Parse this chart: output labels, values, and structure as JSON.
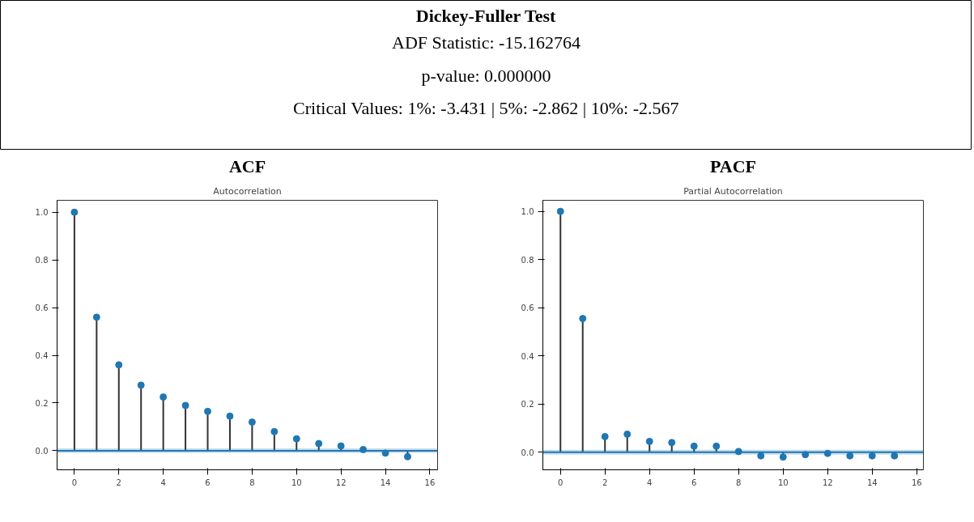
{
  "chart_data": [
    {
      "type": "other",
      "title": "Dickey-Fuller Test",
      "annotations": [
        "ADF Statistic: -15.162764",
        "p-value: 0.000000",
        "Critical Values: 1%: -3.431 | 5%: -2.862 | 10%: -2.567"
      ]
    },
    {
      "type": "lollipop",
      "title": "ACF",
      "subtitle": "Autocorrelation",
      "x": [
        0,
        1,
        2,
        3,
        4,
        5,
        6,
        7,
        8,
        9,
        10,
        11,
        12,
        13,
        14,
        15
      ],
      "series": [
        {
          "color": "#1f77b4",
          "values": [
            1.0,
            0.56,
            0.36,
            0.275,
            0.225,
            0.19,
            0.165,
            0.145,
            0.12,
            0.08,
            0.05,
            0.03,
            0.02,
            0.005,
            -0.01,
            -0.025
          ]
        }
      ],
      "xlim": [
        -0.78,
        16.35
      ],
      "ylim": [
        -0.08,
        1.05
      ],
      "xticks": [
        0,
        2,
        4,
        6,
        8,
        10,
        12,
        14,
        16
      ],
      "yticks": [
        {
          "value": 0,
          "label": "0.0"
        },
        {
          "value": 0.2,
          "label": "0.2"
        },
        {
          "value": 0.4,
          "label": "0.4"
        },
        {
          "value": 0.6,
          "label": "0.6"
        },
        {
          "value": 0.8,
          "label": "0.8"
        },
        {
          "value": 1,
          "label": "1.0"
        }
      ],
      "ref_lines": [
        {
          "axis": "y",
          "value": 0,
          "color": "#1f77b4"
        }
      ],
      "bands": [
        {
          "axis": "y",
          "from": -0.01,
          "to": 0.01,
          "color": "#1f77b4"
        }
      ],
      "marker": "circle",
      "grid": false
    },
    {
      "type": "lollipop",
      "title": "PACF",
      "subtitle": "Partial Autocorrelation",
      "x": [
        0,
        1,
        2,
        3,
        4,
        5,
        6,
        7,
        8,
        9,
        10,
        11,
        12,
        13,
        14,
        15
      ],
      "series": [
        {
          "color": "#1f77b4",
          "values": [
            1.0,
            0.555,
            0.065,
            0.075,
            0.045,
            0.04,
            0.025,
            0.025,
            0.003,
            -0.015,
            -0.02,
            -0.01,
            -0.005,
            -0.015,
            -0.015,
            -0.015
          ]
        }
      ],
      "xlim": [
        -0.79,
        16.3
      ],
      "ylim": [
        -0.073,
        1.046
      ],
      "xticks": [
        0,
        2,
        4,
        6,
        8,
        10,
        12,
        14,
        16
      ],
      "yticks": [
        {
          "value": 0,
          "label": "0.0"
        },
        {
          "value": 0.2,
          "label": "0.2"
        },
        {
          "value": 0.4,
          "label": "0.4"
        },
        {
          "value": 0.6,
          "label": "0.6"
        },
        {
          "value": 0.8,
          "label": "0.8"
        },
        {
          "value": 1,
          "label": "1.0"
        }
      ],
      "ref_lines": [
        {
          "axis": "y",
          "value": 0,
          "color": "#1f77b4"
        }
      ],
      "bands": [
        {
          "axis": "y",
          "from": -0.01,
          "to": 0.01,
          "color": "#1f77b4"
        }
      ],
      "marker": "circle",
      "grid": false
    }
  ]
}
